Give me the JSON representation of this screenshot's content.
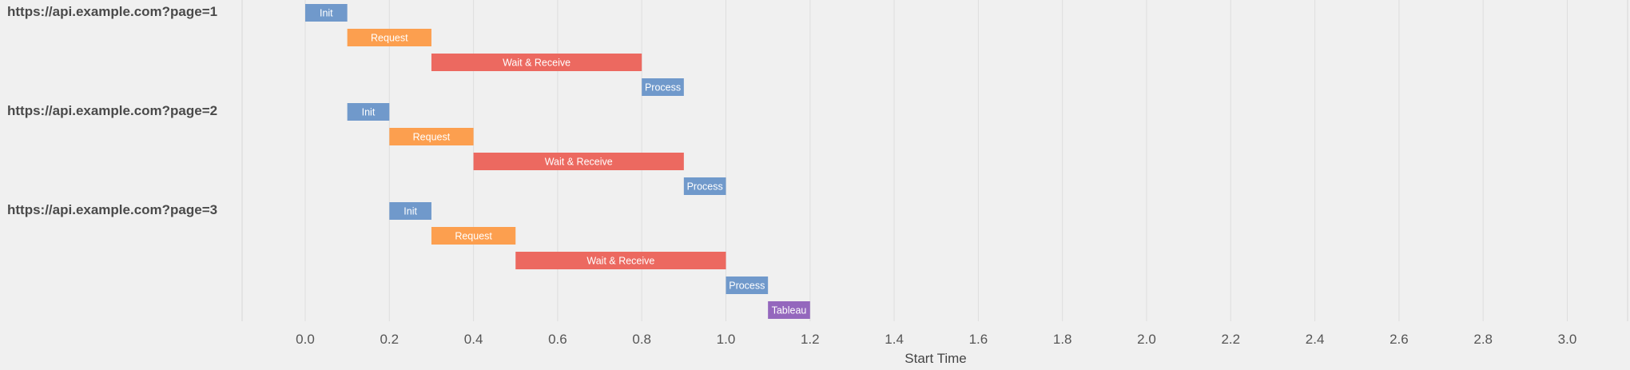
{
  "chart_data": {
    "type": "gantt",
    "xlabel": "Start Time",
    "xlim": [
      -0.15,
      3.15
    ],
    "x_ticks": [
      "0.0",
      "0.2",
      "0.4",
      "0.6",
      "0.8",
      "1.0",
      "1.2",
      "1.4",
      "1.6",
      "1.8",
      "2.0",
      "2.2",
      "2.4",
      "2.6",
      "2.8",
      "3.0"
    ],
    "grid": true,
    "colors": {
      "Init": "#7099cb",
      "Request": "#fc9f4f",
      "Wait & Receive": "#ec6960",
      "Process": "#7099cb",
      "Tableau": "#9467bd"
    },
    "groups": [
      {
        "label": "https://api.example.com?page=1",
        "tasks": [
          {
            "name": "Init",
            "start": 0.0,
            "end": 0.1
          },
          {
            "name": "Request",
            "start": 0.1,
            "end": 0.3
          },
          {
            "name": "Wait & Receive",
            "start": 0.3,
            "end": 0.8
          },
          {
            "name": "Process",
            "start": 0.8,
            "end": 0.9
          }
        ]
      },
      {
        "label": "https://api.example.com?page=2",
        "tasks": [
          {
            "name": "Init",
            "start": 0.1,
            "end": 0.2
          },
          {
            "name": "Request",
            "start": 0.2,
            "end": 0.4
          },
          {
            "name": "Wait & Receive",
            "start": 0.4,
            "end": 0.9
          },
          {
            "name": "Process",
            "start": 0.9,
            "end": 1.0
          }
        ]
      },
      {
        "label": "https://api.example.com?page=3",
        "tasks": [
          {
            "name": "Init",
            "start": 0.2,
            "end": 0.3
          },
          {
            "name": "Request",
            "start": 0.3,
            "end": 0.5
          },
          {
            "name": "Wait & Receive",
            "start": 0.5,
            "end": 1.0
          },
          {
            "name": "Process",
            "start": 1.0,
            "end": 1.1
          },
          {
            "name": "Tableau",
            "start": 1.1,
            "end": 1.2
          }
        ]
      }
    ]
  }
}
